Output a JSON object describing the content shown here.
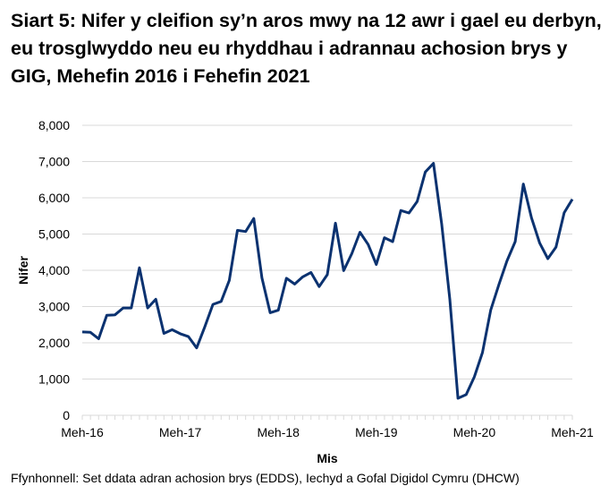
{
  "chart_data": {
    "type": "line",
    "title": "Siart 5: Nifer y cleifion sy’n aros mwy na 12 awr i gael eu derbyn, eu trosglwyddo neu eu rhyddhau i adrannau achosion brys y GIG, Mehefin 2016 i Fehefin 2021",
    "xlabel": "Mis",
    "ylabel": "Nifer",
    "ylim": [
      0,
      8000
    ],
    "yticks": [
      "0",
      "1,000",
      "2,000",
      "3,000",
      "4,000",
      "5,000",
      "6,000",
      "7,000",
      "8,000"
    ],
    "xticks": [
      "Meh-16",
      "Meh-17",
      "Meh-18",
      "Meh-19",
      "Meh-20",
      "Meh-21"
    ],
    "x_start": "2016-06",
    "x_end": "2021-06",
    "grid": "horizontal",
    "color": "#0b3270",
    "values": [
      2300,
      2290,
      2110,
      2760,
      2770,
      2960,
      2960,
      4070,
      2960,
      3200,
      2260,
      2360,
      2250,
      2170,
      1860,
      2440,
      3060,
      3140,
      3720,
      5100,
      5070,
      5430,
      3790,
      2830,
      2900,
      3780,
      3620,
      3820,
      3940,
      3550,
      3880,
      5300,
      3990,
      4460,
      5050,
      4710,
      4160,
      4900,
      4790,
      5650,
      5580,
      5900,
      6710,
      6950,
      5280,
      3200,
      470,
      570,
      1060,
      1730,
      2900,
      3600,
      4260,
      4790,
      6380,
      5450,
      4750,
      4320,
      4640,
      5590,
      5960
    ]
  },
  "source": "Ffynhonnell: Set ddata adran achosion brys (EDDS), Iechyd a Gofal Digidol Cymru (DHCW)"
}
